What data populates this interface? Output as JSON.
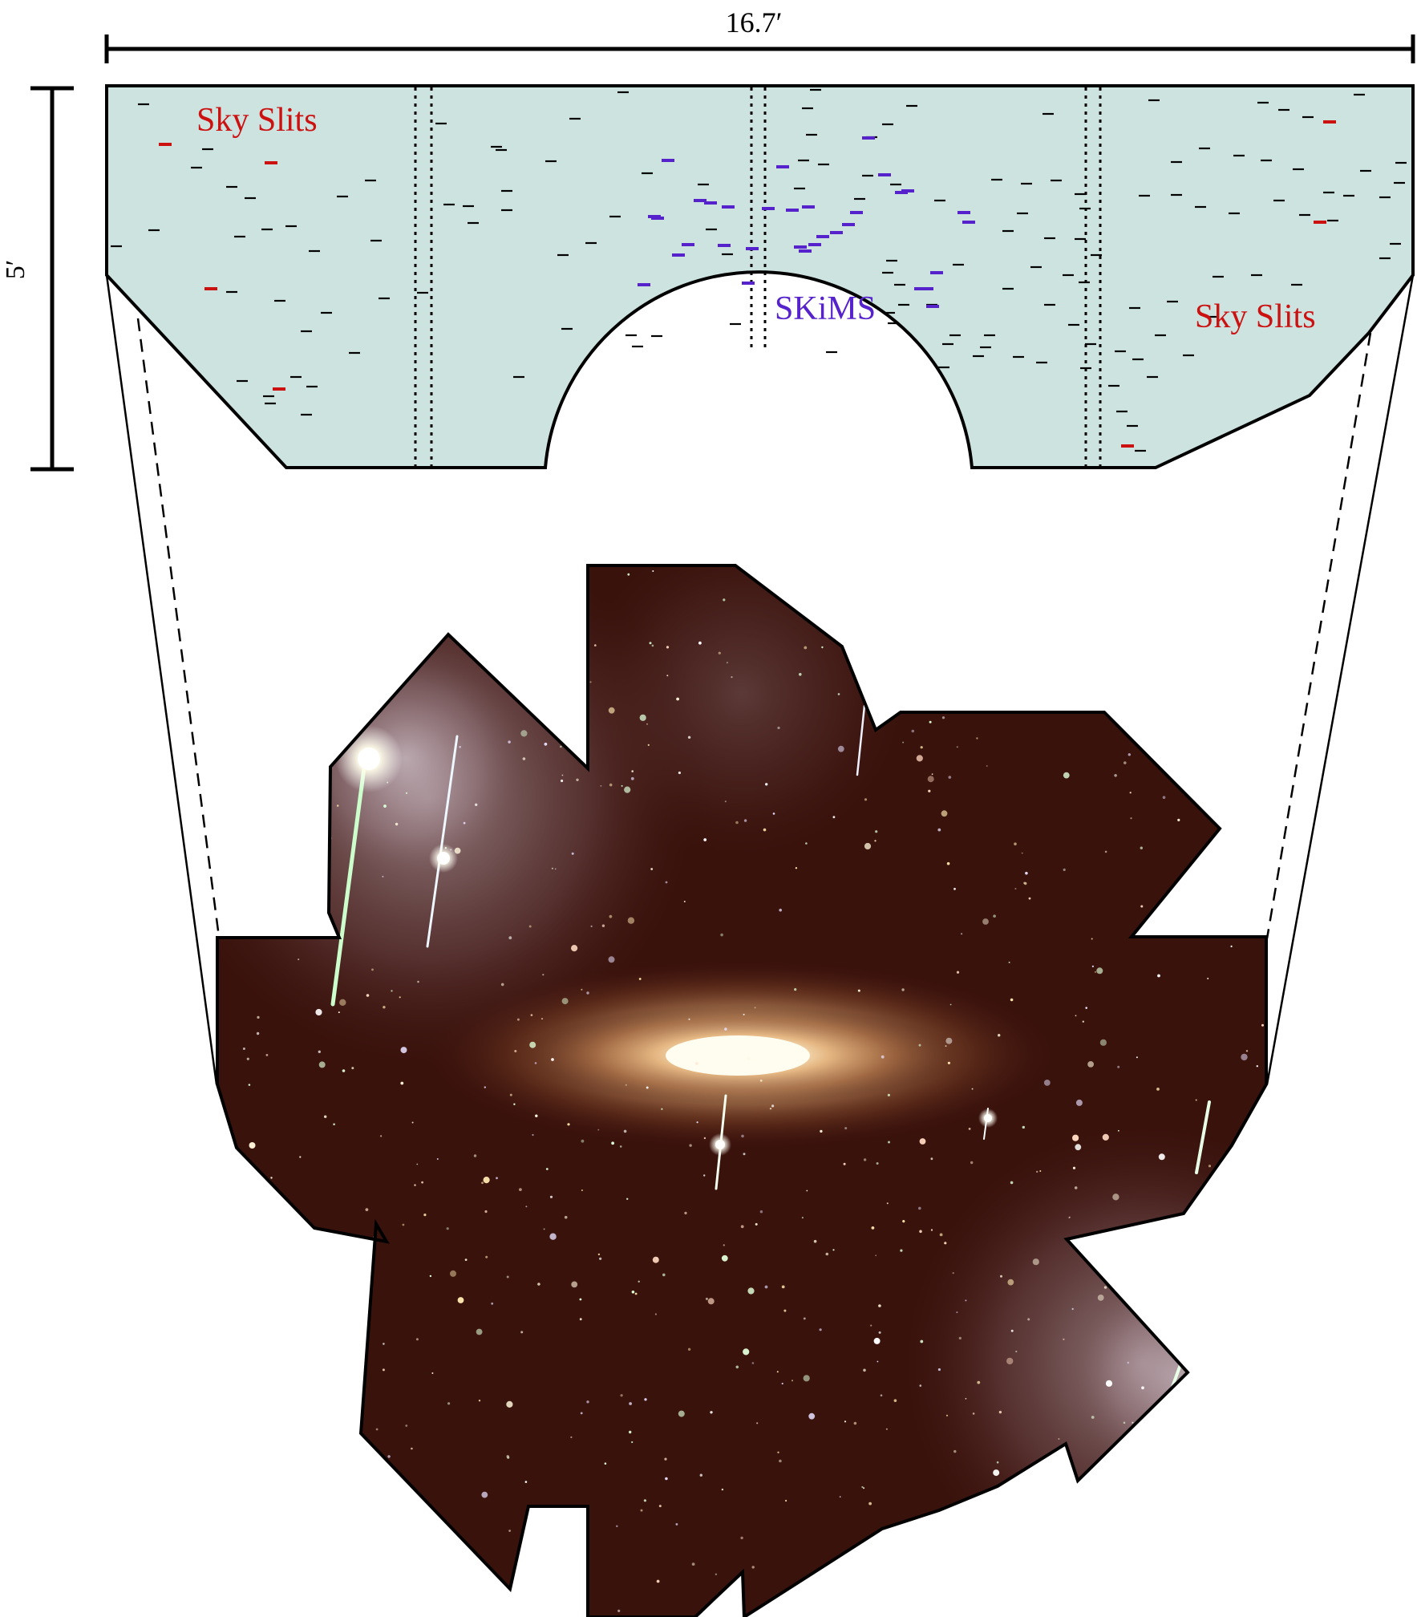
{
  "scale": {
    "width_label": "16.7′",
    "height_label": "5′"
  },
  "labels": {
    "sky_slits_left": "Sky Slits",
    "sky_slits_right": "Sky Slits",
    "skims": "SKiMS"
  },
  "colors": {
    "mask_fill": "#cde3e0",
    "outline": "#000000",
    "slit_regular": "#000000",
    "slit_sky": "#cc1111",
    "slit_skims": "#5522cc",
    "sky_slit_label": "#cc1111",
    "skims_label": "#5522cc",
    "image_background": "#3a120c",
    "galaxy_core": "#fffbe8",
    "galaxy_halo": "#d8a06a"
  }
}
